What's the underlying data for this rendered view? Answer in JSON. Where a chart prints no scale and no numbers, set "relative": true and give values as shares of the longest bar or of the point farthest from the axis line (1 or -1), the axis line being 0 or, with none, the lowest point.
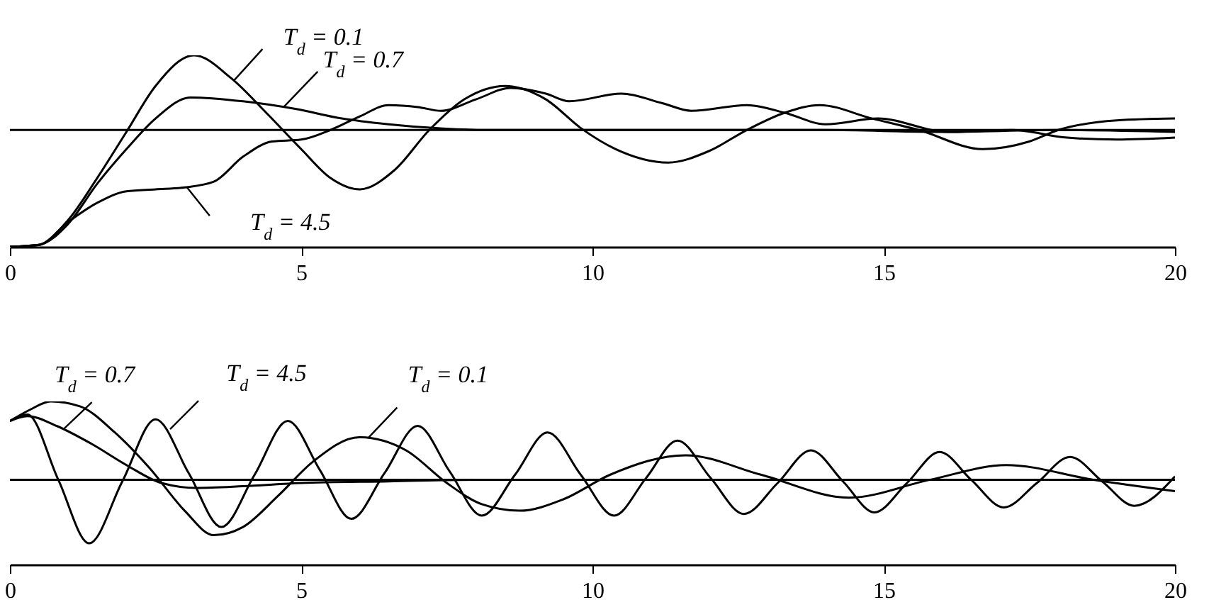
{
  "chart_data": [
    {
      "type": "line",
      "relative": true,
      "xlim": [
        0,
        20
      ],
      "xticks": [
        0,
        5,
        10,
        15,
        20
      ],
      "series": [
        {
          "color": "#000000",
          "x": [
            0,
            0.5,
            1,
            1.5,
            2,
            2.5,
            3.16,
            3.8,
            4.4,
            5,
            5.5,
            6,
            6.6,
            7.2,
            7.8,
            8.5,
            9.2,
            9.8,
            10.4,
            11.3,
            12,
            12.65,
            13.3,
            13.9,
            14.8,
            15.6,
            16.7,
            17.5,
            18,
            19,
            20
          ],
          "values": [
            0,
            0.01,
            0.14,
            0.36,
            0.6,
            0.84,
            1,
            0.88,
            0.7,
            0.51,
            0.36,
            0.3,
            0.4,
            0.61,
            0.77,
            0.84,
            0.77,
            0.62,
            0.51,
            0.44,
            0.5,
            0.61,
            0.7,
            0.74,
            0.67,
            0.61,
            0.51,
            0.55,
            0.61,
            0.66,
            0.67
          ]
        },
        {
          "color": "#000000",
          "x": [
            0,
            0.5,
            1,
            1.5,
            2,
            2.5,
            3.1,
            4,
            4.9,
            5.7,
            6.5,
            7.3,
            8.1,
            10,
            12,
            14,
            16,
            18,
            20
          ],
          "values": [
            0,
            0.01,
            0.12,
            0.33,
            0.51,
            0.67,
            0.78,
            0.76,
            0.72,
            0.67,
            0.64,
            0.62,
            0.61,
            0.61,
            0.61,
            0.61,
            0.6,
            0.61,
            0.6
          ]
        },
        {
          "color": "#000000",
          "x": [
            0,
            0.5,
            1,
            1.5,
            2,
            2.5,
            3,
            3.5,
            4,
            4.5,
            5,
            5.5,
            6,
            6.5,
            7,
            7.4,
            8,
            8.6,
            9.2,
            9.6,
            10.5,
            11.2,
            11.7,
            12.65,
            13.3,
            14,
            14.9,
            16.1,
            17.2,
            18.15,
            19,
            20
          ],
          "values": [
            0,
            0.01,
            0.13,
            0.23,
            0.29,
            0.3,
            0.31,
            0.34,
            0.47,
            0.55,
            0.56,
            0.61,
            0.68,
            0.74,
            0.73,
            0.71,
            0.77,
            0.83,
            0.8,
            0.76,
            0.8,
            0.75,
            0.71,
            0.74,
            0.7,
            0.64,
            0.67,
            0.6,
            0.61,
            0.57,
            0.56,
            0.57
          ]
        }
      ],
      "ref_lines": [
        {
          "axis": "y",
          "value": 0.61,
          "color": "#000000"
        }
      ],
      "annotations": [
        {
          "text": "T$_{d}$ = 0.1",
          "x": 3.85,
          "y": 0.87
        },
        {
          "text": "T$_{d}$ = 0.7",
          "x": 4.7,
          "y": 0.73
        },
        {
          "text": "T$_{d}$ = 4.5",
          "x": 3.04,
          "y": 0.31
        }
      ]
    },
    {
      "type": "line",
      "relative": true,
      "xlim": [
        0,
        20
      ],
      "xticks": [
        0,
        5,
        10,
        15,
        20
      ],
      "series": [
        {
          "color": "#000000",
          "x": [
            0,
            0.35,
            0.7,
            1.2,
            1.8,
            2.4,
            3,
            3.5,
            4,
            4.6,
            5.2,
            6,
            6.8,
            7.5,
            8.1,
            8.75,
            9.5,
            10.3,
            11.6,
            12.9,
            14.4,
            15.8,
            17.1,
            18.6,
            20
          ],
          "values": [
            0.88,
            0.95,
            1,
            0.97,
            0.81,
            0.59,
            0.33,
            0.18,
            0.23,
            0.42,
            0.63,
            0.78,
            0.7,
            0.5,
            0.37,
            0.33,
            0.4,
            0.55,
            0.67,
            0.55,
            0.41,
            0.52,
            0.61,
            0.52,
            0.45
          ]
        },
        {
          "color": "#000000",
          "x": [
            0,
            0.3,
            0.8,
            1.4,
            2,
            2.6,
            3.2,
            4,
            5,
            6.5,
            8,
            10,
            12,
            14,
            16,
            18,
            20
          ],
          "values": [
            0.88,
            0.91,
            0.85,
            0.74,
            0.61,
            0.5,
            0.47,
            0.48,
            0.5,
            0.51,
            0.52,
            0.52,
            0.52,
            0.52,
            0.52,
            0.52,
            0.52
          ]
        },
        {
          "color": "#000000",
          "x": [
            0,
            0.3,
            0.83,
            1.36,
            1.93,
            2.5,
            3.07,
            3.63,
            4.2,
            4.77,
            5.32,
            5.86,
            6.43,
            7,
            7.55,
            8.1,
            8.67,
            9.23,
            9.8,
            10.37,
            10.92,
            11.46,
            12.03,
            12.6,
            13.18,
            13.75,
            14.3,
            14.84,
            15.4,
            15.96,
            16.5,
            17.06,
            17.63,
            18.2,
            18.75,
            19.3,
            20
          ],
          "values": [
            0.88,
            0.92,
            0.52,
            0.13,
            0.51,
            0.89,
            0.56,
            0.23,
            0.55,
            0.88,
            0.58,
            0.28,
            0.56,
            0.85,
            0.57,
            0.3,
            0.55,
            0.81,
            0.55,
            0.3,
            0.53,
            0.76,
            0.53,
            0.31,
            0.5,
            0.7,
            0.51,
            0.32,
            0.5,
            0.69,
            0.52,
            0.35,
            0.5,
            0.66,
            0.51,
            0.36,
            0.54
          ]
        }
      ],
      "ref_lines": [
        {
          "axis": "y",
          "value": 0.52,
          "color": "#000000"
        }
      ],
      "annotations": [
        {
          "text": "T$_{d}$ = 0.7",
          "x": 0.92,
          "y": 0.83
        },
        {
          "text": "T$_{d}$ = 4.5",
          "x": 2.75,
          "y": 0.83
        },
        {
          "text": "T$_{d}$ = 0.1",
          "x": 6.16,
          "y": 0.78
        }
      ]
    }
  ]
}
